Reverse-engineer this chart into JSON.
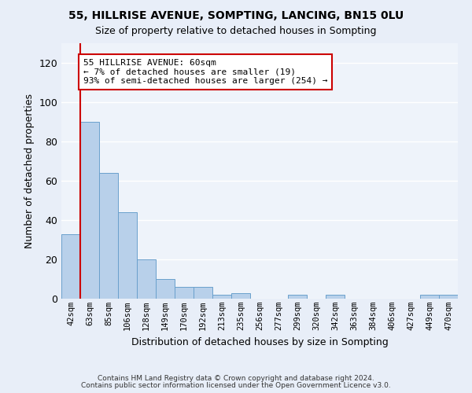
{
  "title1": "55, HILLRISE AVENUE, SOMPTING, LANCING, BN15 0LU",
  "title2": "Size of property relative to detached houses in Sompting",
  "xlabel": "Distribution of detached houses by size in Sompting",
  "ylabel": "Number of detached properties",
  "categories": [
    "42sqm",
    "63sqm",
    "85sqm",
    "106sqm",
    "128sqm",
    "149sqm",
    "170sqm",
    "192sqm",
    "213sqm",
    "235sqm",
    "256sqm",
    "277sqm",
    "299sqm",
    "320sqm",
    "342sqm",
    "363sqm",
    "384sqm",
    "406sqm",
    "427sqm",
    "449sqm",
    "470sqm"
  ],
  "values": [
    33,
    90,
    64,
    44,
    20,
    10,
    6,
    6,
    2,
    3,
    0,
    0,
    2,
    0,
    2,
    0,
    0,
    0,
    0,
    2,
    2
  ],
  "bar_color": "#b8d0ea",
  "bar_edge_color": "#6aa0cc",
  "vline_color": "#cc0000",
  "annotation_title": "55 HILLRISE AVENUE: 60sqm",
  "annotation_line1": "← 7% of detached houses are smaller (19)",
  "annotation_line2": "93% of semi-detached houses are larger (254) →",
  "annotation_box_color": "#ffffff",
  "annotation_box_edge": "#cc0000",
  "ylim": [
    0,
    130
  ],
  "yticks": [
    0,
    20,
    40,
    60,
    80,
    100,
    120
  ],
  "footer1": "Contains HM Land Registry data © Crown copyright and database right 2024.",
  "footer2": "Contains public sector information licensed under the Open Government Licence v3.0.",
  "bg_color": "#e8eef8",
  "plot_bg_color": "#eef3fa"
}
